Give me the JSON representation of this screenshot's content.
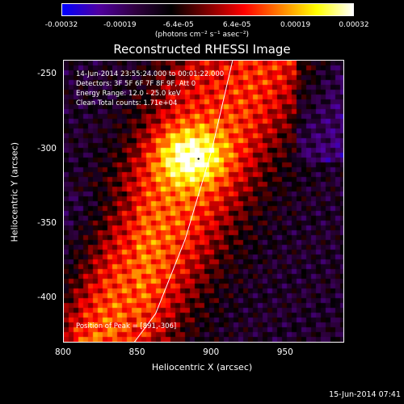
{
  "colorbar": {
    "ticks": [
      "-0.00032",
      "-0.00019",
      "-6.4e-05",
      "6.4e-05",
      "0.00019",
      "0.00032"
    ],
    "units": "(photons cm⁻² s⁻¹ asec⁻²)",
    "colors": [
      "#0000ff",
      "#5000a0",
      "#300040",
      "#000000",
      "#800000",
      "#ff0000",
      "#ff8000",
      "#ffff00",
      "#ffffff"
    ]
  },
  "title": "Reconstructed RHESSI Image",
  "annotations": {
    "time": "14-Jun-2014 23:55:24.000 to 00:01:22.000",
    "detectors": "Detectors: 3F 5F 6F 7F 8F 9F, Att 0",
    "energy": "Energy Range: 12.0 - 25.0 keV",
    "method": "Clean     Total counts: 1.71e+04",
    "peak": "Position of Peak = [891,-306]"
  },
  "chart_data": {
    "type": "heatmap",
    "title": "Reconstructed RHESSI Image",
    "xlabel": "Heliocentric X (arcsec)",
    "ylabel": "Heliocentric Y (arcsec)",
    "xlim": [
      800,
      990
    ],
    "ylim": [
      -430,
      -240
    ],
    "x_ticks": [
      "800",
      "850",
      "900",
      "950"
    ],
    "y_ticks": [
      "-250",
      "-300",
      "-350",
      "-400"
    ],
    "x_tick_values": [
      800,
      850,
      900,
      950
    ],
    "y_tick_values": [
      -250,
      -300,
      -350,
      -400
    ],
    "value_range": [
      -0.00032,
      0.00032
    ],
    "peak_position": [
      891,
      -306
    ],
    "limb_curve": [
      [
        914,
        -240
      ],
      [
        900,
        -300
      ],
      [
        882,
        -360
      ],
      [
        862,
        -410
      ],
      [
        847,
        -430
      ]
    ]
  },
  "footer": "15-Jun-2014 07:41"
}
